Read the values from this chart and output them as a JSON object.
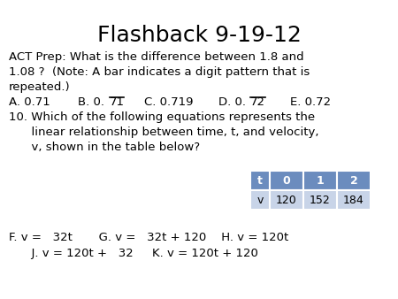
{
  "title": "Flashback 9-19-12",
  "title_fontsize": 18,
  "background_color": "#ffffff",
  "text_color": "#000000",
  "body_fontsize": 9.5,
  "line1": "ACT Prep: What is the difference between 1.8 and",
  "line2": "1.08 ?  (Note: A bar indicates a digit pattern that is",
  "line3": "repeated.)",
  "line5": "10. Which of the following equations represents the",
  "line6": "      linear relationship between time, t, and velocity,",
  "line7": "      v, shown in the table below?",
  "table_header": [
    "t",
    "0",
    "1",
    "2"
  ],
  "table_row": [
    "v",
    "120",
    "152",
    "184"
  ],
  "table_header_bg": "#6b8cbe",
  "table_row_bg": "#c8d4e8",
  "line8": "F. v =   32t       G. v =   32t + 120    H. v = 120t",
  "line9": "      J. v = 120t +   32     K. v = 120t + 120"
}
